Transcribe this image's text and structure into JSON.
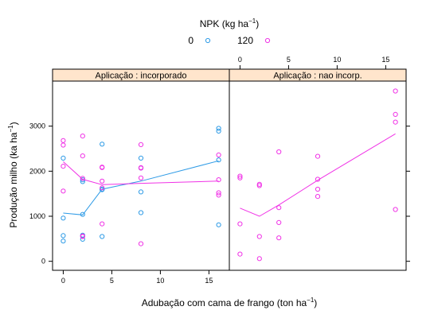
{
  "chart_data": {
    "type": "scatter",
    "legend": {
      "title_main": "NPK (kg ha",
      "title_sup": "−1",
      "title_end": ")",
      "placement": "top",
      "entries": [
        {
          "label": "0",
          "color": "#2e9be6"
        },
        {
          "label": "120",
          "color": "#f032e6"
        }
      ]
    },
    "xlabel": {
      "main": "Adubação com cama de frango (ton ha",
      "sup": "−1",
      "end": ")"
    },
    "ylabel": {
      "main": "Produção milho (ka ha",
      "sup": "−1",
      "end": ")"
    },
    "xlim": [
      -1.1,
      17.1
    ],
    "ylim": [
      -200,
      4000
    ],
    "x_ticks": [
      0,
      5,
      10,
      15
    ],
    "x_tick_labels": [
      "0",
      "5",
      "10",
      "15"
    ],
    "y_ticks": [
      0,
      1000,
      2000,
      3000
    ],
    "y_tick_labels": [
      "0",
      "1000",
      "2000",
      "3000"
    ],
    "grid": false,
    "panels": [
      {
        "strip": "Aplicação : incorporado",
        "series": [
          {
            "name": "0",
            "color": "#2e9be6",
            "points": [
              [
                0,
                2290
              ],
              [
                0,
                960
              ],
              [
                0,
                570
              ],
              [
                0,
                450
              ],
              [
                2,
                1810
              ],
              [
                2,
                1770
              ],
              [
                2,
                1040
              ],
              [
                2,
                580
              ],
              [
                2,
                490
              ],
              [
                4,
                2600
              ],
              [
                4,
                1600
              ],
              [
                4,
                1590
              ],
              [
                4,
                550
              ],
              [
                8,
                2290
              ],
              [
                8,
                2070
              ],
              [
                8,
                1540
              ],
              [
                8,
                1080
              ],
              [
                16,
                2950
              ],
              [
                16,
                2890
              ],
              [
                16,
                2250
              ],
              [
                16,
                810
              ]
            ],
            "line": [
              [
                0,
                1070
              ],
              [
                2,
                1030
              ],
              [
                4,
                1600
              ],
              [
                8,
                1780
              ],
              [
                16,
                2230
              ]
            ]
          },
          {
            "name": "120",
            "color": "#f032e6",
            "points": [
              [
                0,
                2680
              ],
              [
                0,
                2580
              ],
              [
                0,
                2110
              ],
              [
                0,
                1560
              ],
              [
                2,
                2780
              ],
              [
                2,
                2340
              ],
              [
                2,
                1840
              ],
              [
                2,
                560
              ],
              [
                2,
                550
              ],
              [
                4,
                2090
              ],
              [
                4,
                2080
              ],
              [
                4,
                1780
              ],
              [
                4,
                1630
              ],
              [
                4,
                830
              ],
              [
                8,
                2590
              ],
              [
                8,
                2080
              ],
              [
                8,
                2070
              ],
              [
                8,
                1850
              ],
              [
                8,
                390
              ],
              [
                16,
                2360
              ],
              [
                16,
                1810
              ],
              [
                16,
                1520
              ],
              [
                16,
                1470
              ]
            ],
            "line": [
              [
                0,
                2210
              ],
              [
                2,
                1820
              ],
              [
                4,
                1700
              ],
              [
                8,
                1730
              ],
              [
                16,
                1780
              ]
            ]
          }
        ]
      },
      {
        "strip": "Aplicação : nao incorp.",
        "series": [
          {
            "name": "120",
            "color": "#f032e6",
            "points": [
              [
                0,
                1890
              ],
              [
                0,
                1850
              ],
              [
                0,
                830
              ],
              [
                0,
                160
              ],
              [
                2,
                1710
              ],
              [
                2,
                1680
              ],
              [
                2,
                550
              ],
              [
                2,
                60
              ],
              [
                4,
                2430
              ],
              [
                4,
                1190
              ],
              [
                4,
                860
              ],
              [
                4,
                520
              ],
              [
                8,
                2330
              ],
              [
                8,
                1820
              ],
              [
                8,
                1600
              ],
              [
                8,
                1440
              ],
              [
                16,
                3780
              ],
              [
                16,
                3260
              ],
              [
                16,
                3090
              ],
              [
                16,
                1150
              ]
            ],
            "line": [
              [
                0,
                1180
              ],
              [
                2,
                1000
              ],
              [
                4,
                1250
              ],
              [
                8,
                1800
              ],
              [
                16,
                2830
              ]
            ]
          }
        ]
      }
    ]
  }
}
